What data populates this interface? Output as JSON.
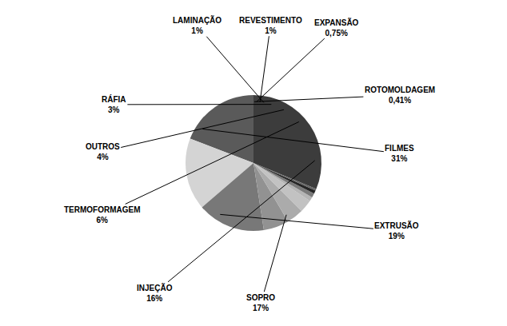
{
  "chart_data": {
    "type": "pie",
    "categories": [
      "FILMES",
      "EXTRUSÃO",
      "SOPRO",
      "INJEÇÃO",
      "TERMOFORMAGEM",
      "OUTROS",
      "RÁFIA",
      "LAMINAÇÃO",
      "REVESTIMENTO",
      "EXPANSÃO",
      "ROTOMOLDAGEM"
    ],
    "values": [
      31,
      19,
      17,
      16,
      6,
      4,
      3,
      1,
      1,
      0.75,
      0.41
    ],
    "value_labels": [
      "31%",
      "19%",
      "17%",
      "16%",
      "6%",
      "4%",
      "3%",
      "1%",
      "1%",
      "0,75%",
      "0,41%"
    ],
    "colors": [
      "#3c3c3c",
      "#5a5a5a",
      "#d4d4d4",
      "#787878",
      "#929292",
      "#ababab",
      "#c2c2c2",
      "#b5b5b5",
      "#7a7a7a",
      "#252525",
      "#636363"
    ],
    "data_labels": true
  }
}
